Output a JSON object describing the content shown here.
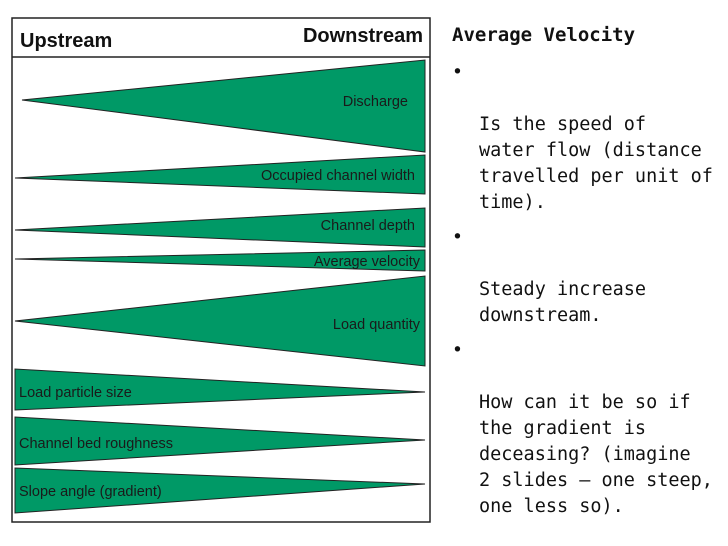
{
  "diagram": {
    "header_left": "Upstream",
    "header_right": "Downstream",
    "fill_color": "#009966",
    "rows": [
      {
        "label": "Discharge",
        "direction": "increasing"
      },
      {
        "label": "Occupied channel width",
        "direction": "increasing"
      },
      {
        "label": "Channel depth",
        "direction": "increasing"
      },
      {
        "label": "Average velocity",
        "direction": "increasing"
      },
      {
        "label": "Load quantity",
        "direction": "increasing"
      },
      {
        "label": "Load particle size",
        "direction": "decreasing"
      },
      {
        "label": "Channel bed roughness",
        "direction": "decreasing"
      },
      {
        "label": "Slope angle (gradient)",
        "direction": "decreasing"
      }
    ]
  },
  "notes": {
    "title": "Average Velocity",
    "bullet_symbol": "•",
    "bullets": [
      "Is the speed of\nwater flow (distance\ntravelled per unit of\ntime).",
      "Steady increase\ndownstream.",
      "How can it be so if\nthe gradient is\ndeceasing? (imagine\n2 slides – one steep,\none less so)."
    ]
  }
}
